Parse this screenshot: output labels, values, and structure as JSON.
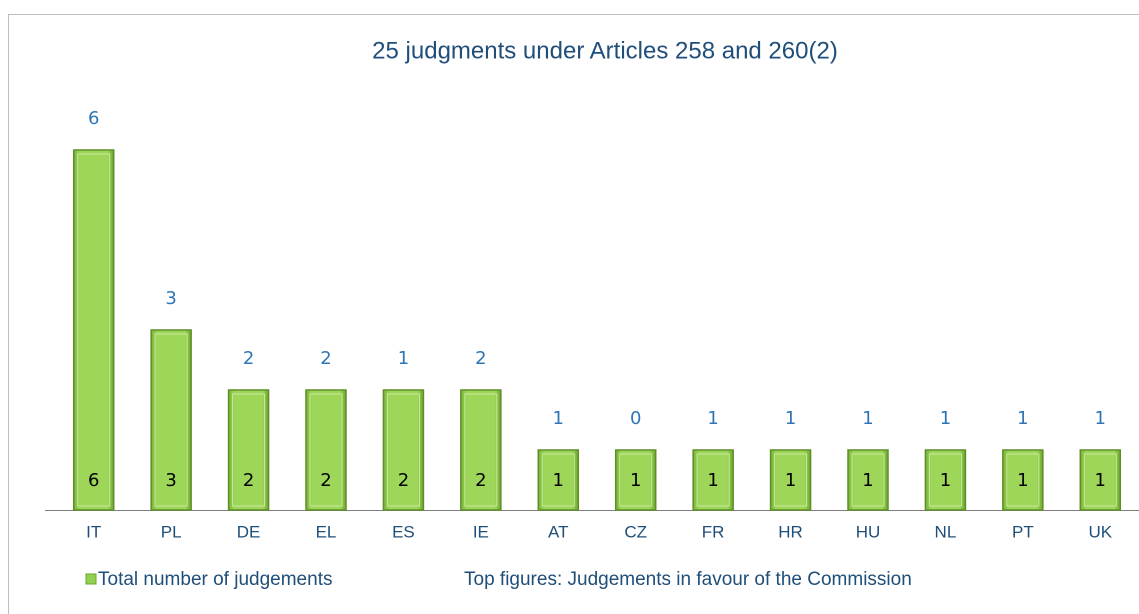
{
  "chart_data": {
    "type": "bar",
    "title": "25 judgments under Articles 258 and 260(2)",
    "categories": [
      "IT",
      "PL",
      "DE",
      "EL",
      "ES",
      "IE",
      "AT",
      "CZ",
      "FR",
      "HR",
      "HU",
      "NL",
      "PT",
      "UK"
    ],
    "series": [
      {
        "name": "Total number of judgements",
        "color": "#92d050",
        "values": [
          6,
          3,
          2,
          2,
          2,
          2,
          1,
          1,
          1,
          1,
          1,
          1,
          1,
          1
        ]
      }
    ],
    "top_figures": [
      6,
      3,
      2,
      2,
      1,
      2,
      1,
      0,
      1,
      1,
      1,
      1,
      1,
      1
    ],
    "annotation": "Top figures: Judgements in favour of the Commission",
    "ylim": [
      0,
      7
    ]
  }
}
